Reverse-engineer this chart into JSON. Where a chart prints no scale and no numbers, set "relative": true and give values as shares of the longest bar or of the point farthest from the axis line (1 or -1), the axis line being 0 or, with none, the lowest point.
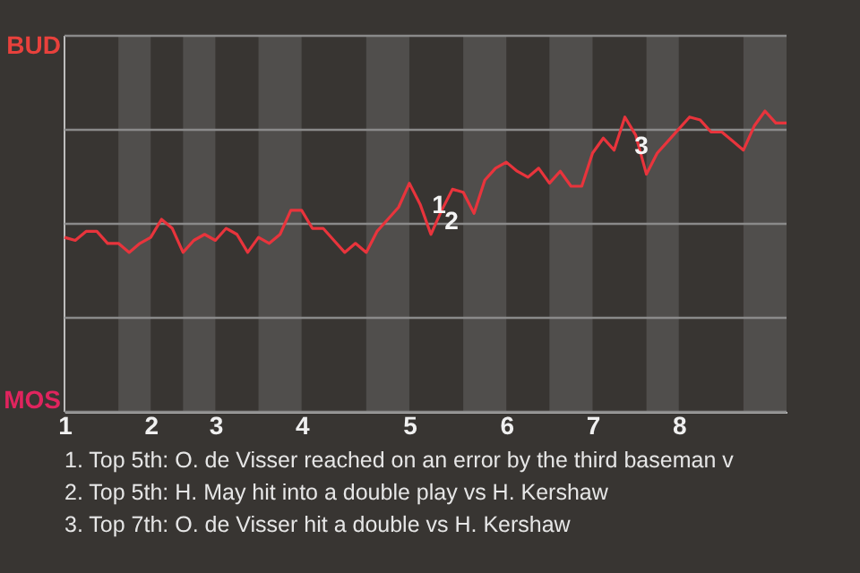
{
  "chart_data": {
    "type": "line",
    "relative": true,
    "categories": [
      "1",
      null,
      null,
      null,
      null,
      null,
      null,
      null,
      "2",
      null,
      null,
      null,
      null,
      null,
      "3",
      null,
      null,
      null,
      null,
      null,
      null,
      null,
      "4",
      null,
      null,
      null,
      null,
      null,
      null,
      null,
      null,
      null,
      "5",
      null,
      null,
      null,
      null,
      null,
      null,
      null,
      null,
      "6",
      null,
      null,
      null,
      null,
      null,
      null,
      null,
      "7",
      null,
      null,
      null,
      null,
      null,
      null,
      null,
      "8",
      null,
      null,
      null,
      null,
      null,
      null,
      null,
      null,
      null,
      null
    ],
    "series": [
      {
        "color": "#e8343c",
        "values": [
          0.58,
          0.57,
          0.6,
          0.6,
          0.56,
          0.56,
          0.53,
          0.56,
          0.58,
          0.64,
          0.61,
          0.53,
          0.57,
          0.59,
          0.57,
          0.61,
          0.59,
          0.53,
          0.58,
          0.56,
          0.59,
          0.67,
          0.67,
          0.61,
          0.61,
          0.57,
          0.53,
          0.56,
          0.53,
          0.6,
          0.64,
          0.68,
          0.76,
          0.69,
          0.59,
          0.67,
          0.74,
          0.73,
          0.66,
          0.77,
          0.81,
          0.83,
          0.8,
          0.78,
          0.81,
          0.76,
          0.8,
          0.75,
          0.75,
          0.86,
          0.91,
          0.87,
          0.98,
          0.92,
          0.79,
          0.86,
          0.9,
          0.94,
          0.98,
          0.97,
          0.93,
          0.93,
          0.9,
          0.87,
          0.95,
          1,
          0.96,
          0.96
        ]
      }
    ],
    "grid": "y",
    "annotations": [
      "BUD",
      "1",
      "2",
      "3",
      "MOS",
      "1. Top 5th: O. de Visser reached on an error by the third baseman v",
      "2. Top 5th: H. May hit into a double play vs H. Kershaw",
      "3. Top 7th: O. de Visser hit a double vs H. Kershaw"
    ]
  }
}
